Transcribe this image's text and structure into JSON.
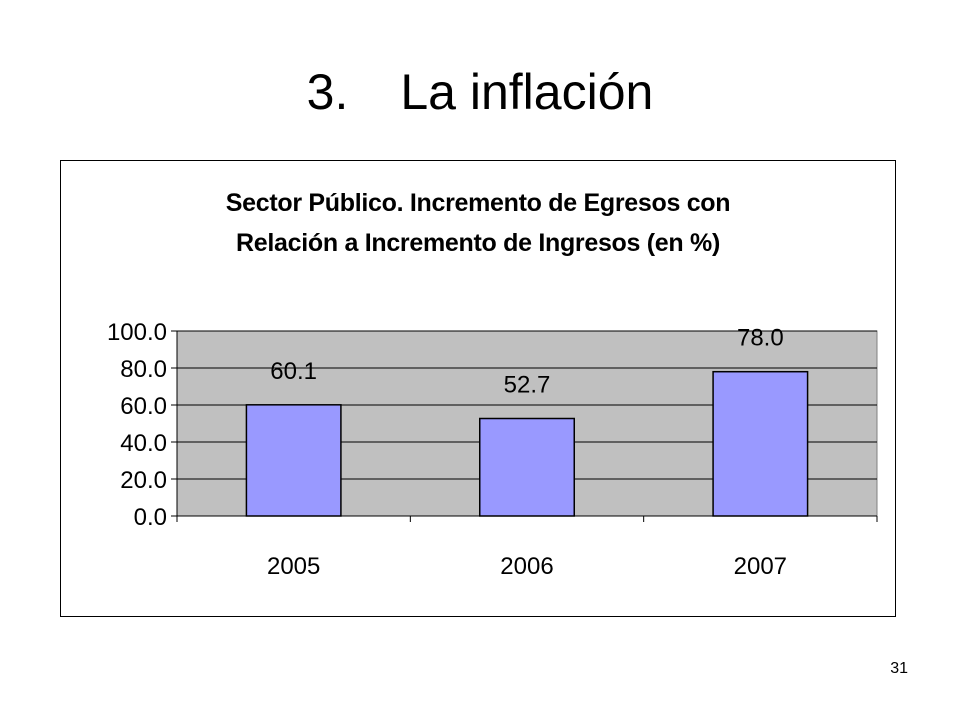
{
  "slide": {
    "number_label": "3.",
    "title": "La inflación",
    "page_number": "31"
  },
  "chart_data": {
    "type": "bar",
    "title_lines": [
      "Sector Público. Incremento de Egresos con",
      "Relación a Incremento de Ingresos  (en %)"
    ],
    "categories": [
      "2005",
      "2006",
      "2007"
    ],
    "values": [
      60.1,
      52.7,
      78.0
    ],
    "data_labels": [
      "60.1",
      "52.7",
      "78.0"
    ],
    "y_ticks": [
      "0.0",
      "20.0",
      "40.0",
      "60.0",
      "80.0",
      "100.0"
    ],
    "ylim": [
      0,
      100
    ],
    "xlabel": "",
    "ylabel": "",
    "grid": true,
    "legend": "none",
    "colors": {
      "bar": "#9999ff",
      "plot_area": "#c0c0c0",
      "bar_edge": "#000000"
    }
  }
}
